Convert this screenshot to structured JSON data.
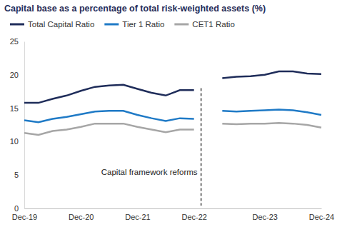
{
  "chart_data": {
    "type": "line",
    "title": "Capital base as a percentage of total risk-weighted assets (%)",
    "categories": [
      "Dec-19",
      null,
      null,
      null,
      "Dec-20",
      null,
      null,
      null,
      "Dec-21",
      null,
      null,
      null,
      "Dec-22",
      null,
      null,
      null,
      null,
      "Dec-23",
      null,
      null,
      null,
      "Dec-24"
    ],
    "series": [
      {
        "name": "Total Capital Ratio",
        "color": "#1f2d5a",
        "values": [
          15.8,
          15.8,
          16.4,
          16.9,
          17.6,
          18.2,
          18.4,
          18.5,
          17.9,
          17.3,
          16.9,
          17.7,
          17.7,
          null,
          19.5,
          19.7,
          19.8,
          20.0,
          20.5,
          20.5,
          20.2,
          20.1
        ]
      },
      {
        "name": "Tier 1 Ratio",
        "color": "#1f7ac6",
        "values": [
          13.2,
          12.9,
          13.4,
          13.7,
          14.1,
          14.5,
          14.6,
          14.6,
          14.0,
          13.5,
          13.1,
          13.5,
          13.4,
          null,
          14.6,
          14.5,
          14.6,
          14.7,
          14.8,
          14.7,
          14.4,
          14.0
        ]
      },
      {
        "name": "CET1 Ratio",
        "color": "#a6a6a6",
        "values": [
          11.3,
          11.0,
          11.6,
          11.8,
          12.2,
          12.7,
          12.7,
          12.7,
          12.2,
          11.8,
          11.4,
          11.8,
          11.8,
          null,
          12.7,
          12.6,
          12.7,
          12.7,
          12.8,
          12.7,
          12.5,
          12.1
        ]
      }
    ],
    "annotations": [
      {
        "text": "Capital framework reforms",
        "x": "Dec-22"
      }
    ],
    "ylim": [
      0,
      25
    ],
    "yticks": [
      0,
      5,
      10,
      15,
      20,
      25
    ],
    "grid": false,
    "legend": "top"
  }
}
